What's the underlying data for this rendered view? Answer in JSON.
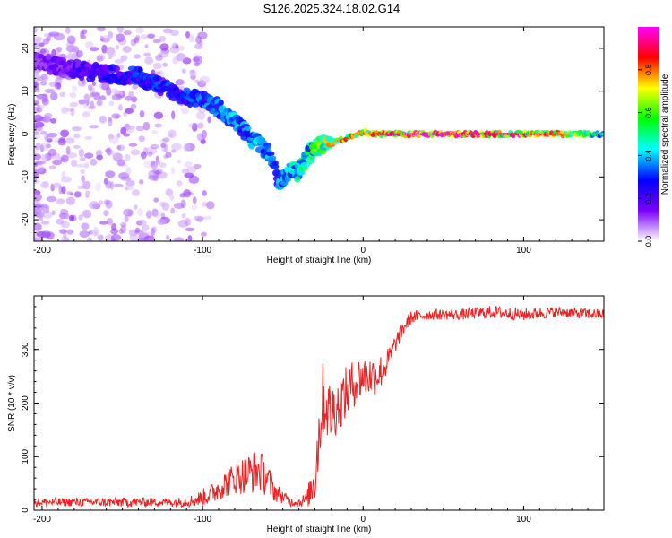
{
  "figure": {
    "title": "S126.2025.324.18.02.G14"
  },
  "chart_data": [
    {
      "type": "heatmap",
      "xlabel": "Height of straight line (km)",
      "ylabel": "Frequency (Hz)",
      "xlim": [
        -205,
        150
      ],
      "ylim": [
        -25,
        25
      ],
      "xticks": [
        -200,
        -100,
        0,
        100
      ],
      "yticks": [
        -20,
        -10,
        0,
        10,
        20
      ],
      "colorbar": {
        "label": "Normalized spectral amplitude",
        "range": [
          0,
          1
        ],
        "ticks": [
          "0.0",
          "0.2",
          "0.4",
          "0.6",
          "0.8"
        ],
        "colors": [
          "#ffffff",
          "#7b00ff",
          "#0000ff",
          "#00ffff",
          "#00ff00",
          "#ffff00",
          "#ff0000",
          "#ff00ff"
        ]
      },
      "ridge": {
        "x": [
          -205,
          -180,
          -160,
          -140,
          -120,
          -100,
          -90,
          -80,
          -70,
          -60,
          -52,
          -45,
          -40,
          -35,
          -30,
          -20,
          -10,
          -5,
          0,
          10,
          20,
          40,
          60,
          80,
          100,
          120,
          150
        ],
        "freq": [
          17,
          15,
          14,
          13.5,
          10,
          8,
          6,
          3,
          -1,
          -4,
          -11,
          -8,
          -9,
          -5,
          -3,
          -2,
          -1,
          0,
          0.5,
          0,
          0,
          0,
          0,
          0,
          0,
          0,
          0
        ],
        "amplitude": [
          0.15,
          0.2,
          0.25,
          0.3,
          0.3,
          0.35,
          0.35,
          0.4,
          0.4,
          0.4,
          0.4,
          0.45,
          0.45,
          0.5,
          0.55,
          0.7,
          0.8,
          0.75,
          0.7,
          0.8,
          0.95,
          0.95,
          0.9,
          0.85,
          0.85,
          0.8,
          0.45
        ]
      }
    },
    {
      "type": "line",
      "xlabel": "Height of straight line (km)",
      "ylabel": "SNR (10 * v/v)",
      "xlim": [
        -205,
        150
      ],
      "ylim": [
        0,
        400
      ],
      "xticks": [
        -200,
        -100,
        0,
        100
      ],
      "yticks": [
        0,
        100,
        200,
        300
      ],
      "color": "#ee2222",
      "series": [
        {
          "x": [
            -205,
            -190,
            -170,
            -150,
            -130,
            -115,
            -105,
            -95,
            -88,
            -80,
            -75,
            -70,
            -65,
            -60,
            -55,
            -50,
            -45,
            -40,
            -35,
            -30,
            -28,
            -25,
            -22,
            -20,
            -15,
            -10,
            -5,
            0,
            5,
            10,
            15,
            20,
            25,
            30,
            40,
            60,
            80,
            100,
            120,
            150
          ],
          "y": [
            15,
            15,
            15,
            15,
            15,
            15,
            18,
            30,
            45,
            60,
            65,
            70,
            75,
            60,
            35,
            25,
            15,
            15,
            20,
            60,
            130,
            210,
            190,
            180,
            200,
            220,
            240,
            250,
            250,
            255,
            275,
            310,
            340,
            360,
            365,
            365,
            370,
            365,
            370,
            365
          ],
          "noise": [
            8,
            8,
            8,
            9,
            8,
            9,
            12,
            20,
            25,
            30,
            35,
            40,
            40,
            35,
            20,
            12,
            8,
            8,
            15,
            50,
            70,
            70,
            60,
            60,
            50,
            50,
            45,
            40,
            40,
            35,
            25,
            18,
            15,
            12,
            10,
            10,
            12,
            12,
            10,
            10
          ]
        }
      ]
    }
  ]
}
